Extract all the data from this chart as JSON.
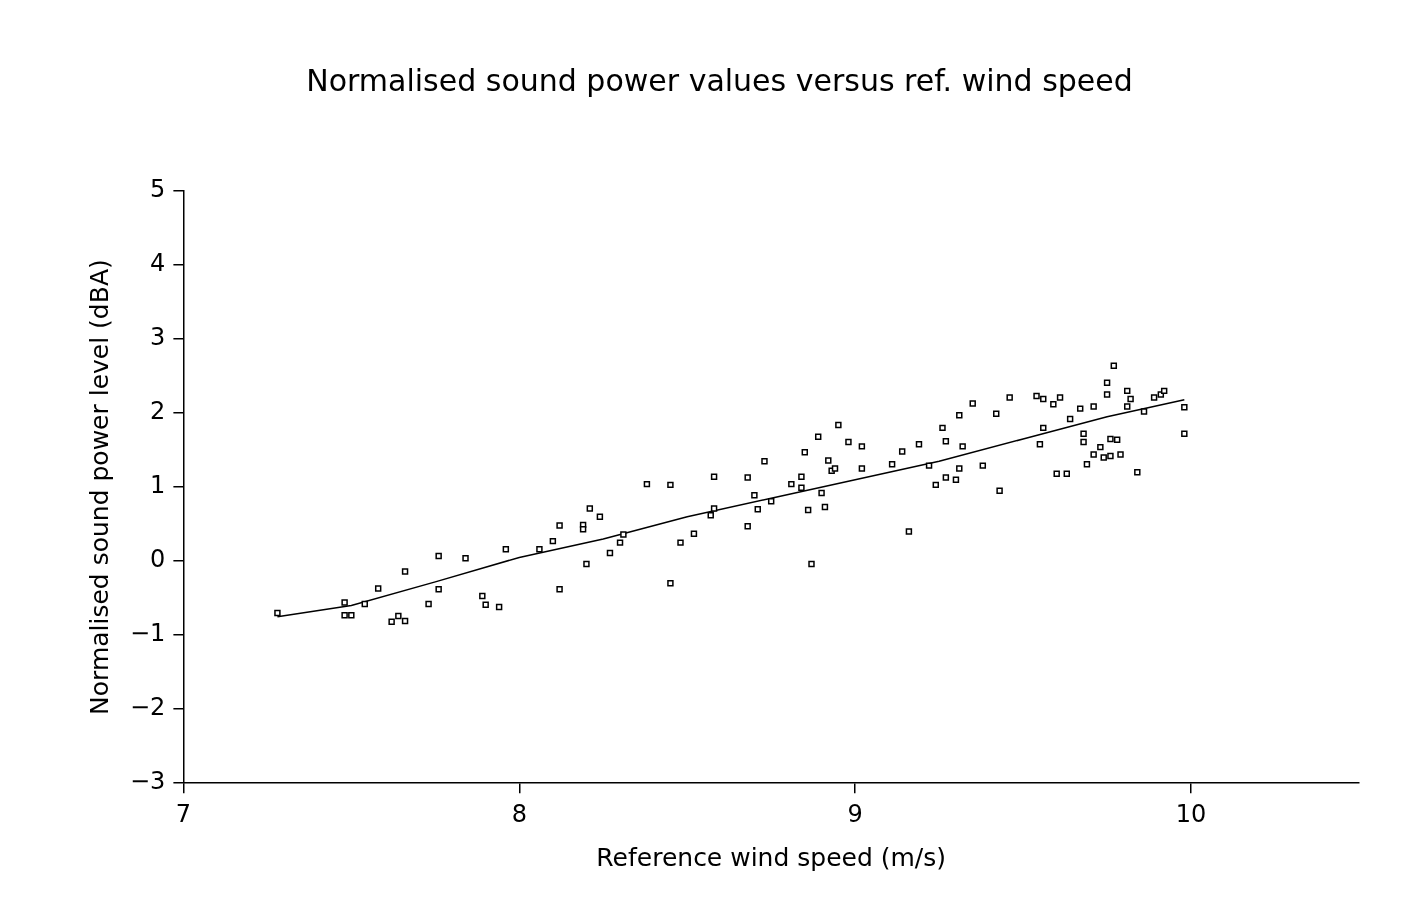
{
  "chart_data": {
    "type": "scatter",
    "title": "Normalised sound power values versus ref. wind speed",
    "xlabel": "Reference wind speed (m/s)",
    "ylabel": "Normalised sound power level (dBA)",
    "xlim": [
      7,
      10.5
    ],
    "xticks": [
      7,
      8,
      9,
      10
    ],
    "ylim": [
      -3,
      5
    ],
    "yticks": [
      -3,
      -2,
      -1,
      0,
      1,
      2,
      3,
      4,
      5
    ],
    "grid": false,
    "legend": false,
    "marker": "square",
    "series": [
      {
        "type": "scatter",
        "color": "#000000",
        "x": [
          7.28,
          7.48,
          7.5,
          7.48,
          7.54,
          7.58,
          7.62,
          7.64,
          7.66,
          7.66,
          7.73,
          7.76,
          7.76,
          7.84,
          7.89,
          7.9,
          7.94,
          7.96,
          8.06,
          8.1,
          8.12,
          8.12,
          8.19,
          8.19,
          8.2,
          8.21,
          8.24,
          8.27,
          8.3,
          8.31,
          8.38,
          8.45,
          8.45,
          8.48,
          8.52,
          8.57,
          8.58,
          8.58,
          8.68,
          8.68,
          8.7,
          8.71,
          8.73,
          8.75,
          8.81,
          8.84,
          8.84,
          8.85,
          8.86,
          8.87,
          8.89,
          8.9,
          8.91,
          8.92,
          8.93,
          8.94,
          8.95,
          8.98,
          9.02,
          9.02,
          9.11,
          9.14,
          9.16,
          9.19,
          9.22,
          9.24,
          9.26,
          9.27,
          9.27,
          9.3,
          9.31,
          9.31,
          9.32,
          9.35,
          9.38,
          9.42,
          9.43,
          9.46,
          9.54,
          9.56,
          9.56,
          9.55,
          9.59,
          9.61,
          9.6,
          9.63,
          9.64,
          9.67,
          9.68,
          9.68,
          9.69,
          9.71,
          9.71,
          9.73,
          9.74,
          9.75,
          9.75,
          9.76,
          9.76,
          9.77,
          9.78,
          9.79,
          9.81,
          9.81,
          9.82,
          9.84,
          9.86,
          9.89,
          9.91,
          9.92,
          9.98,
          9.98
        ],
        "values": [
          -0.7,
          -0.73,
          -0.73,
          -0.56,
          -0.58,
          -0.37,
          -0.82,
          -0.74,
          -0.81,
          -0.14,
          -0.58,
          -0.38,
          0.07,
          0.04,
          -0.47,
          -0.59,
          -0.62,
          0.16,
          0.16,
          0.27,
          0.48,
          -0.38,
          0.49,
          0.43,
          -0.04,
          0.71,
          0.6,
          0.11,
          0.25,
          0.36,
          1.04,
          1.03,
          -0.3,
          0.25,
          0.37,
          0.62,
          0.71,
          1.14,
          1.13,
          0.47,
          0.89,
          0.7,
          1.35,
          0.81,
          1.04,
          0.99,
          1.14,
          1.47,
          0.69,
          -0.04,
          1.68,
          0.92,
          0.73,
          1.36,
          1.22,
          1.25,
          1.84,
          1.61,
          1.55,
          1.25,
          1.31,
          1.48,
          0.4,
          1.58,
          1.29,
          1.03,
          1.8,
          1.62,
          1.13,
          1.1,
          1.25,
          1.97,
          1.55,
          2.13,
          1.29,
          1.99,
          0.95,
          2.21,
          2.23,
          2.19,
          1.8,
          1.58,
          2.12,
          2.21,
          1.18,
          1.18,
          1.92,
          2.06,
          1.72,
          1.61,
          1.31,
          2.09,
          1.44,
          1.54,
          1.4,
          2.41,
          2.25,
          1.65,
          1.42,
          2.64,
          1.64,
          1.44,
          2.09,
          2.3,
          2.19,
          1.2,
          2.02,
          2.21,
          2.25,
          2.3,
          2.08,
          1.72
        ]
      },
      {
        "type": "line",
        "color": "#000000",
        "marker": "none",
        "line_style": "solid",
        "x": [
          7.28,
          7.5,
          7.75,
          8,
          8.25,
          8.5,
          8.75,
          9,
          9.25,
          9.5,
          9.75,
          9.98
        ],
        "values": [
          -0.75,
          -0.6,
          -0.28,
          0.05,
          0.3,
          0.6,
          0.85,
          1.1,
          1.35,
          1.65,
          1.95,
          2.18
        ]
      }
    ]
  }
}
